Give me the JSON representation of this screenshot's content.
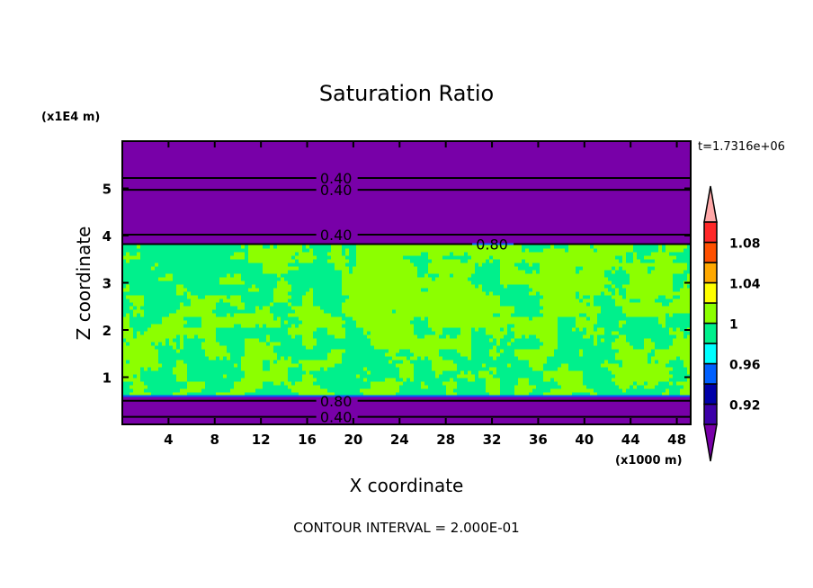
{
  "chart_data": {
    "type": "heatmap",
    "title": "Saturation Ratio",
    "xlabel": "X coordinate",
    "ylabel": "Z coordinate",
    "x_unit": "(x1000 m)",
    "y_unit": "(x1E4 m)",
    "xlim": [
      0,
      49.2
    ],
    "ylim": [
      0,
      6
    ],
    "xticks": [
      4,
      8,
      12,
      16,
      20,
      24,
      28,
      32,
      36,
      40,
      44,
      48
    ],
    "yticks": [
      1,
      2,
      3,
      4,
      5
    ],
    "time_label": "t=1.7316e+06",
    "footer": "CONTOUR INTERVAL = 2.000E-01",
    "contours": [
      {
        "z": 5.22,
        "label": "0.40",
        "label_x": 18.5
      },
      {
        "z": 4.97,
        "label": "0.40",
        "label_x": 18.5
      },
      {
        "z": 4.02,
        "label": "0.40",
        "label_x": 18.5
      },
      {
        "z": 3.82,
        "label": "0.80",
        "label_x": 32
      },
      {
        "z": 0.5,
        "label": "0.80",
        "label_x": 18.5
      },
      {
        "z": 0.16,
        "label": "0.40",
        "label_x": 18.5
      }
    ],
    "cloud_layer_z": [
      0.62,
      3.8
    ],
    "colorbar": {
      "levels": [
        0.9,
        0.92,
        0.94,
        0.96,
        0.98,
        1.0,
        1.02,
        1.04,
        1.06,
        1.08,
        1.1
      ],
      "tick_labels": [
        "0.92",
        "0.96",
        "1",
        "1.04",
        "1.08"
      ],
      "colors": [
        "#3c00a8",
        "#0000a8",
        "#0060ff",
        "#00ffff",
        "#00f08c",
        "#8cff00",
        "#ffff00",
        "#ffa800",
        "#ff5000",
        "#ff2828"
      ],
      "under_color": "#7800a8",
      "over_color": "#ffa8a8"
    }
  }
}
